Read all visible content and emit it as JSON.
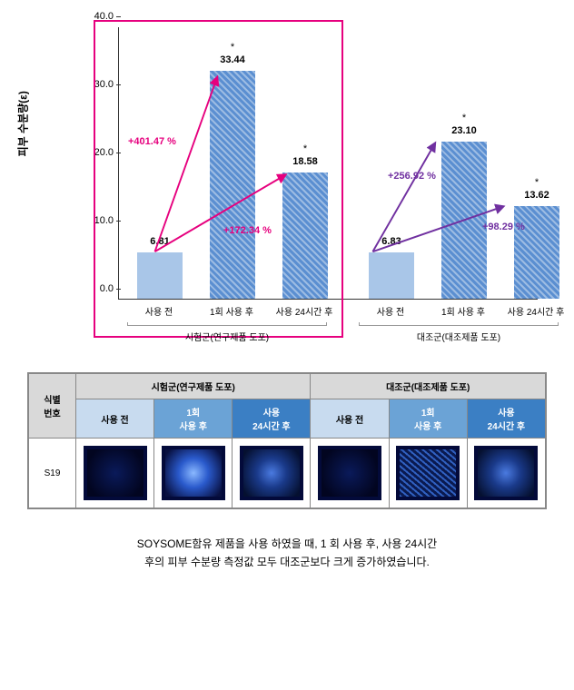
{
  "chart": {
    "y_axis_label": "피부 수분량(ε)",
    "ylim": [
      0,
      40
    ],
    "yticks": [
      "0.0",
      "10.0",
      "20.0",
      "30.0",
      "40.0"
    ],
    "groups": [
      {
        "label": "시험군(연구제품 도포)"
      },
      {
        "label": "대조군(대조제품 도포)"
      }
    ],
    "x_categories": [
      "사용 전",
      "1회 사용 후",
      "사용 24시간 후"
    ],
    "bars": [
      {
        "value": 6.81,
        "style": "solid",
        "star": false
      },
      {
        "value": 33.44,
        "style": "hatch",
        "star": true
      },
      {
        "value": 18.58,
        "style": "hatch",
        "star": true
      },
      {
        "value": 6.83,
        "style": "solid",
        "star": false
      },
      {
        "value": 23.1,
        "style": "hatch",
        "star": true
      },
      {
        "value": 13.62,
        "style": "hatch",
        "star": true
      }
    ],
    "colors": {
      "solid_bar": "#a9c6e8",
      "hatch_bar": "#5b8fd1",
      "axis": "#333333",
      "highlight_border": "#e6007e",
      "arrow_magenta": "#e6007e",
      "arrow_purple": "#7030a0"
    },
    "annotations": {
      "pct1": "+401.47 %",
      "pct2": "+172.34 %",
      "pct3": "+256.92 %",
      "pct4": "+98.29 %"
    }
  },
  "table": {
    "corner": "식별\n번호",
    "groups": [
      "시험군(연구제품 도포)",
      "대조군(대조제품 도포)"
    ],
    "cols": [
      {
        "label": "사용 전",
        "cls": "hdr-light"
      },
      {
        "label": "1회\n사용 후",
        "cls": "hdr-mid"
      },
      {
        "label": "사용\n24시간 후",
        "cls": "hdr-dark"
      },
      {
        "label": "사용 전",
        "cls": "hdr-light"
      },
      {
        "label": "1회\n사용 후",
        "cls": "hdr-mid"
      },
      {
        "label": "사용\n24시간 후",
        "cls": "hdr-dark"
      }
    ],
    "row_id": "S19",
    "swatches": [
      "sw-dark",
      "sw-bright",
      "sw-med",
      "sw-dark",
      "sw-med2",
      "sw-med"
    ]
  },
  "caption": {
    "line1": "SOYSOME함유 제품을 사용 하였을 때, 1 회 사용 후, 사용 24시간",
    "line2": "후의 피부 수분량 측정값 모두 대조군보다 크게 증가하였습니다."
  }
}
